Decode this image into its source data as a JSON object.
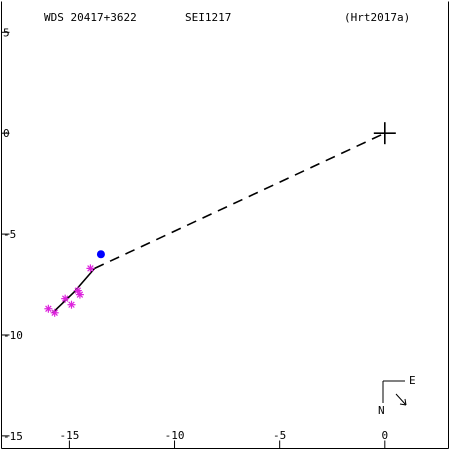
{
  "header": {
    "wds_id": "WDS 20417+3622",
    "discoverer": "SEI1217",
    "orbit_ref": "(Hrt2017a)"
  },
  "compass": {
    "east_label": "E",
    "north_label": "N"
  },
  "colors": {
    "axes": "#000000",
    "observations": "#dd22dd",
    "current_position": "#0000ff",
    "orbit": "#000000",
    "residual": "#dd22dd"
  },
  "chart_data": {
    "type": "scatter",
    "title": "WDS 20417+3622   SEI1217   (Hrt2017a)",
    "xlabel": "",
    "ylabel": "",
    "xlim": [
      -18.3,
      3.1
    ],
    "ylim": [
      6.6,
      -15.7
    ],
    "x_ticks": [
      -15,
      -10,
      -5,
      0
    ],
    "x_tick_labels": [
      "-15",
      "-10",
      "-5",
      "0"
    ],
    "y_ticks": [
      -15,
      -10,
      -5,
      0,
      5
    ],
    "y_tick_labels": [
      "-15",
      "-10",
      "-5",
      "0",
      "5"
    ],
    "primary_star": {
      "x": 0,
      "y": 0
    },
    "orbit_arc": [
      [
        -15.8,
        -8.9
      ],
      [
        -14.8,
        -7.9
      ],
      [
        -13.8,
        -6.7
      ]
    ],
    "line_of_nodes": [
      [
        -13.8,
        -6.7
      ],
      [
        0,
        0
      ]
    ],
    "observations": [
      {
        "x": -16.0,
        "y": -8.7
      },
      {
        "x": -15.7,
        "y": -8.9
      },
      {
        "x": -15.2,
        "y": -8.2
      },
      {
        "x": -14.9,
        "y": -8.5
      },
      {
        "x": -14.6,
        "y": -7.8
      },
      {
        "x": -14.5,
        "y": -8.0
      },
      {
        "x": -14.0,
        "y": -6.7
      }
    ],
    "current_position": {
      "x": -13.5,
      "y": -6.0
    },
    "grid": false
  }
}
